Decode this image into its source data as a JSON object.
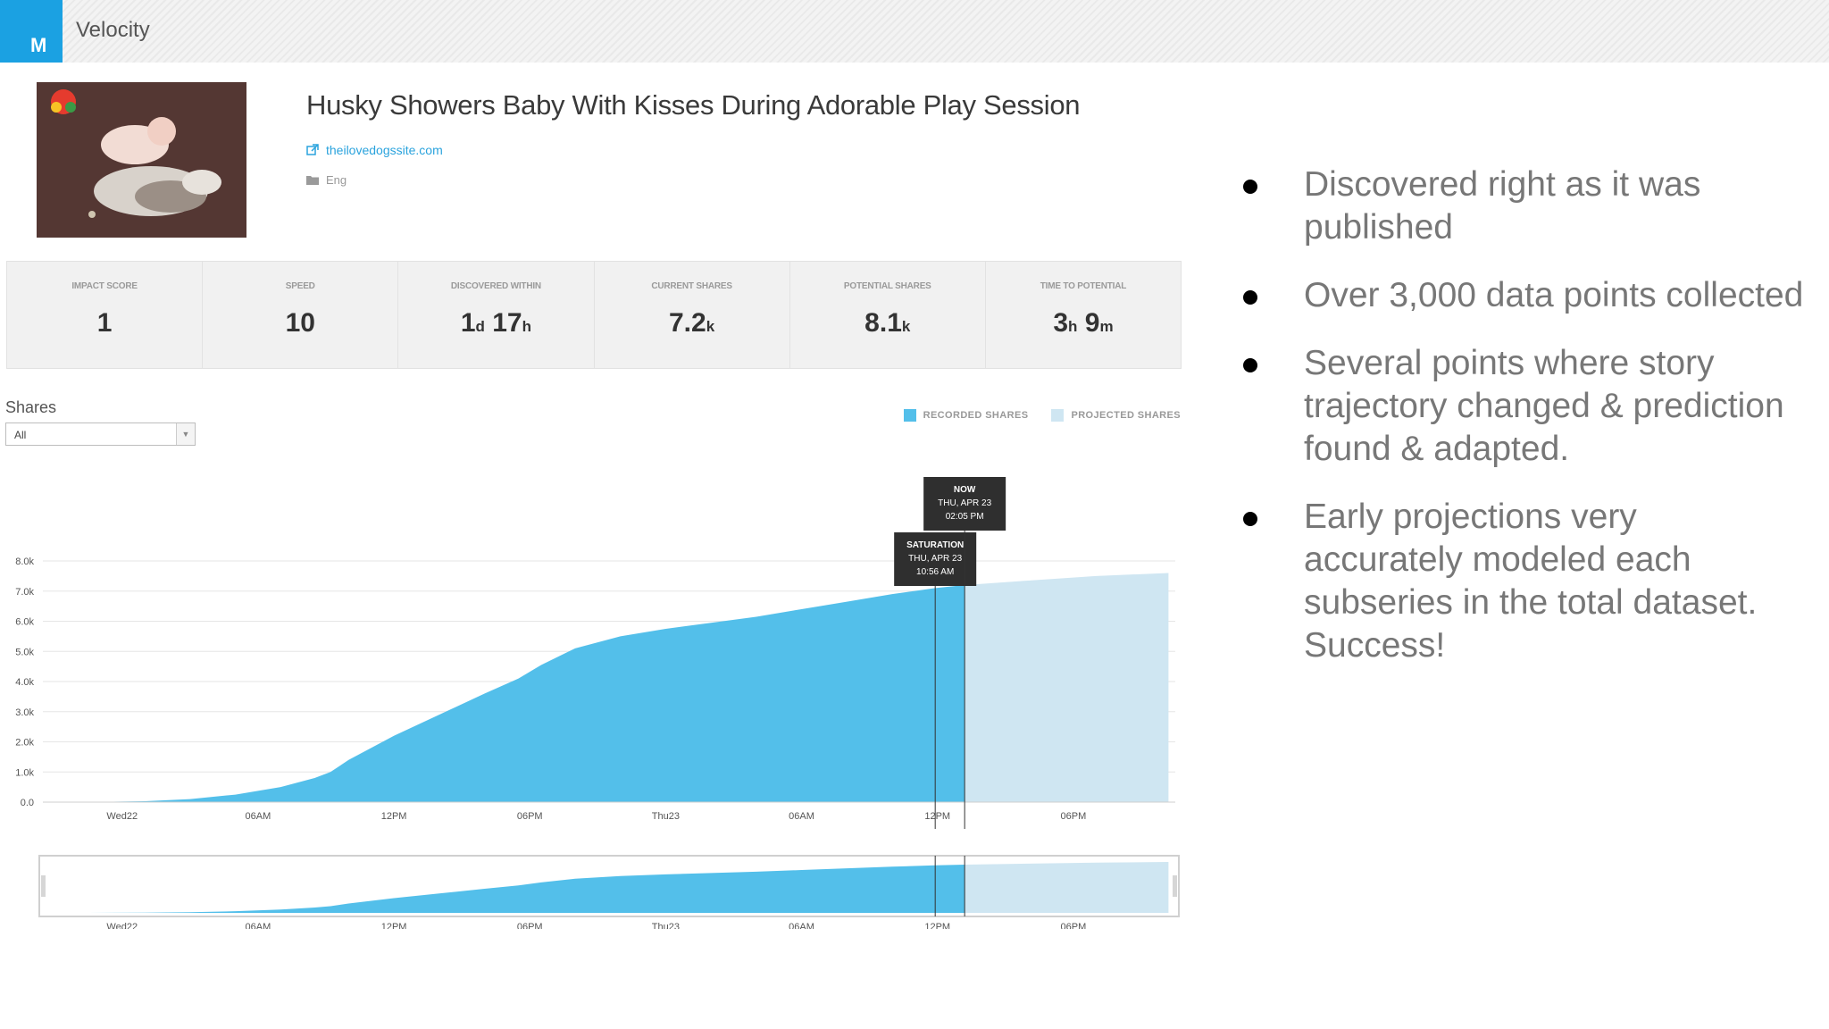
{
  "app": {
    "logo_letter": "M",
    "title": "Velocity",
    "accent": "#1ba1e2"
  },
  "story": {
    "title": "Husky Showers Baby With Kisses During Adorable Play Session",
    "source": "theilovedogssite.com",
    "language": "Eng"
  },
  "stats": [
    {
      "label": "IMPACT SCORE",
      "parts": [
        {
          "n": "1"
        }
      ]
    },
    {
      "label": "SPEED",
      "parts": [
        {
          "n": "10"
        }
      ]
    },
    {
      "label": "DISCOVERED WITHIN",
      "parts": [
        {
          "n": "1",
          "u": "d"
        },
        {
          "n": "17",
          "u": "h"
        }
      ]
    },
    {
      "label": "CURRENT SHARES",
      "parts": [
        {
          "n": "7.2",
          "u": "k"
        }
      ]
    },
    {
      "label": "POTENTIAL SHARES",
      "parts": [
        {
          "n": "8.1",
          "u": "k"
        }
      ]
    },
    {
      "label": "TIME TO POTENTIAL",
      "parts": [
        {
          "n": "3",
          "u": "h"
        },
        {
          "n": "9",
          "u": "m"
        }
      ]
    }
  ],
  "shares_filter": {
    "label": "Shares",
    "selected": "All"
  },
  "legend": {
    "recorded": "RECORDED SHARES",
    "projected": "PROJECTED SHARES"
  },
  "colors": {
    "recorded": "#53bfea",
    "projected": "#cfe6f2",
    "grid": "#e6e6e6",
    "axis_text": "#555555",
    "tooltip_bg": "#2f2f2f"
  },
  "chart_data": {
    "type": "area",
    "ylabel": "",
    "xlabel": "",
    "yticks": [
      "0.0",
      "1.0k",
      "2.0k",
      "3.0k",
      "4.0k",
      "5.0k",
      "6.0k",
      "7.0k",
      "8.0k"
    ],
    "ylim": [
      0,
      8000
    ],
    "xlim_hours": [
      -3.5,
      46.5
    ],
    "xticks": [
      {
        "h": 0,
        "label": "Wed22"
      },
      {
        "h": 6,
        "label": "06AM"
      },
      {
        "h": 12,
        "label": "12PM"
      },
      {
        "h": 18,
        "label": "06PM"
      },
      {
        "h": 24,
        "label": "Thu23"
      },
      {
        "h": 30,
        "label": "06AM"
      },
      {
        "h": 36,
        "label": "12PM"
      },
      {
        "h": 42,
        "label": "06PM"
      }
    ],
    "series": [
      {
        "name": "RECORDED SHARES",
        "x": [
          -1.5,
          1,
          3,
          5,
          7,
          8.5,
          9.2,
          10,
          12,
          14,
          16,
          17.5,
          18.5,
          20,
          22,
          24,
          26,
          28,
          30,
          32,
          34,
          35.9,
          37.2
        ],
        "y": [
          0,
          30,
          100,
          250,
          500,
          800,
          1000,
          1400,
          2200,
          2900,
          3600,
          4100,
          4550,
          5100,
          5500,
          5750,
          5950,
          6150,
          6400,
          6650,
          6900,
          7100,
          7200
        ]
      },
      {
        "name": "PROJECTED SHARES",
        "x": [
          37.2,
          40,
          43,
          46.2
        ],
        "y": [
          7200,
          7350,
          7500,
          7600
        ]
      }
    ],
    "markers": [
      {
        "h": 35.9,
        "title": "SATURATION",
        "line1": "THU, APR 23",
        "line2": "10:56 AM"
      },
      {
        "h": 37.2,
        "title": "NOW",
        "line1": "THU, APR 23",
        "line2": "02:05 PM"
      }
    ],
    "navigator": true
  },
  "bullets": [
    "Discovered right as it was published",
    "Over 3,000 data points collected",
    "Several points where story trajectory changed & prediction found & adapted.",
    "Early projections very accurately modeled each subseries in the total dataset. Success!"
  ]
}
